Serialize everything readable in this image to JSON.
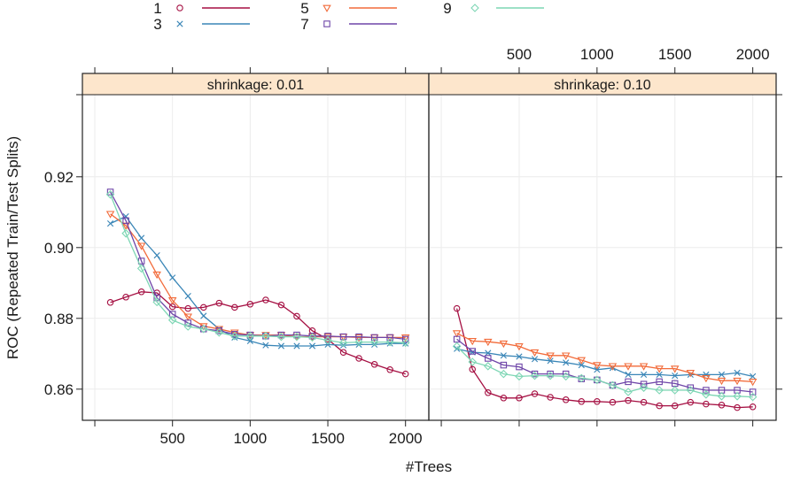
{
  "chart_data": {
    "type": "line",
    "xlabel": "#Trees",
    "ylabel": "ROC (Repeated Train/Test Splits)",
    "xlim": [
      -80,
      2150
    ],
    "ylim": [
      0.8512,
      0.9432
    ],
    "xticks": [
      500,
      1000,
      1500,
      2000
    ],
    "xtick_labels": [
      "500",
      "1000",
      "1500",
      "2000"
    ],
    "yticks": [
      0.86,
      0.88,
      0.9,
      0.92
    ],
    "ytick_labels": [
      "0.86",
      "0.88",
      "0.90",
      "0.92"
    ],
    "grid": true,
    "legend": {
      "placement": "top",
      "entries": [
        {
          "label": "1",
          "marker": "circle",
          "color": "#a50f42"
        },
        {
          "label": "3",
          "marker": "x",
          "color": "#3a86b7"
        },
        {
          "label": "5",
          "marker": "triangle-down",
          "color": "#f26b3a"
        },
        {
          "label": "7",
          "marker": "square",
          "color": "#6e45a8"
        },
        {
          "label": "9",
          "marker": "diamond",
          "color": "#7dd6b4"
        }
      ]
    },
    "x": [
      100,
      200,
      300,
      400,
      500,
      600,
      700,
      800,
      900,
      1000,
      1100,
      1200,
      1300,
      1400,
      1500,
      1600,
      1700,
      1800,
      1900,
      2000
    ],
    "panels": [
      {
        "strip": "shrinkage: 0.01",
        "series": [
          {
            "name": "1",
            "values": [
              0.8845,
              0.886,
              0.8875,
              0.8872,
              0.8833,
              0.8828,
              0.8831,
              0.8843,
              0.8831,
              0.884,
              0.8852,
              0.8838,
              0.8806,
              0.8765,
              0.8741,
              0.8704,
              0.8687,
              0.867,
              0.8655,
              0.8643
            ]
          },
          {
            "name": "3",
            "values": [
              0.9068,
              0.9088,
              0.9027,
              0.8978,
              0.8915,
              0.8863,
              0.8807,
              0.877,
              0.8746,
              0.8736,
              0.8724,
              0.8722,
              0.8722,
              0.8722,
              0.8726,
              0.8724,
              0.8726,
              0.8726,
              0.8729,
              0.8729
            ]
          },
          {
            "name": "5",
            "values": [
              0.9095,
              0.9062,
              0.9005,
              0.8924,
              0.8851,
              0.8805,
              0.8778,
              0.877,
              0.876,
              0.8753,
              0.8753,
              0.8753,
              0.8748,
              0.8748,
              0.8748,
              0.8748,
              0.8746,
              0.8746,
              0.8746,
              0.8746
            ]
          },
          {
            "name": "7",
            "values": [
              0.9157,
              0.9076,
              0.8962,
              0.8858,
              0.8812,
              0.8787,
              0.877,
              0.8765,
              0.8755,
              0.8753,
              0.875,
              0.8753,
              0.8753,
              0.875,
              0.875,
              0.8748,
              0.8748,
              0.8746,
              0.8746,
              0.8741
            ]
          },
          {
            "name": "9",
            "values": [
              0.915,
              0.904,
              0.8941,
              0.8846,
              0.8795,
              0.8777,
              0.877,
              0.876,
              0.875,
              0.875,
              0.875,
              0.8748,
              0.8748,
              0.8746,
              0.8738,
              0.8731,
              0.8733,
              0.8733,
              0.8733,
              0.8731
            ]
          }
        ]
      },
      {
        "strip": "shrinkage: 0.10",
        "series": [
          {
            "name": "1",
            "values": [
              0.8828,
              0.8656,
              0.859,
              0.8575,
              0.8575,
              0.8587,
              0.8577,
              0.857,
              0.8565,
              0.8565,
              0.8563,
              0.8568,
              0.8563,
              0.8553,
              0.8553,
              0.8563,
              0.8558,
              0.8555,
              0.8548,
              0.855
            ]
          },
          {
            "name": "3",
            "values": [
              0.8714,
              0.8704,
              0.8702,
              0.8695,
              0.8692,
              0.8685,
              0.868,
              0.8675,
              0.8668,
              0.8655,
              0.866,
              0.8641,
              0.8641,
              0.8641,
              0.8638,
              0.8641,
              0.8641,
              0.8641,
              0.8646,
              0.8636
            ]
          },
          {
            "name": "5",
            "values": [
              0.8758,
              0.8736,
              0.8734,
              0.8729,
              0.8721,
              0.8704,
              0.8695,
              0.8695,
              0.8682,
              0.8668,
              0.8665,
              0.8665,
              0.8665,
              0.8658,
              0.8658,
              0.8646,
              0.8631,
              0.8624,
              0.8624,
              0.8621
            ]
          },
          {
            "name": "7",
            "values": [
              0.8741,
              0.8707,
              0.8687,
              0.8668,
              0.8663,
              0.8643,
              0.8643,
              0.8643,
              0.8629,
              0.8626,
              0.8611,
              0.8621,
              0.8614,
              0.8621,
              0.8616,
              0.8604,
              0.8597,
              0.8597,
              0.8597,
              0.8592
            ]
          },
          {
            "name": "9",
            "values": [
              0.8721,
              0.8677,
              0.8665,
              0.8643,
              0.8636,
              0.8638,
              0.8638,
              0.8636,
              0.8631,
              0.8626,
              0.8611,
              0.8592,
              0.8604,
              0.8597,
              0.8597,
              0.8597,
              0.8585,
              0.858,
              0.858,
              0.8578
            ]
          }
        ]
      }
    ]
  }
}
